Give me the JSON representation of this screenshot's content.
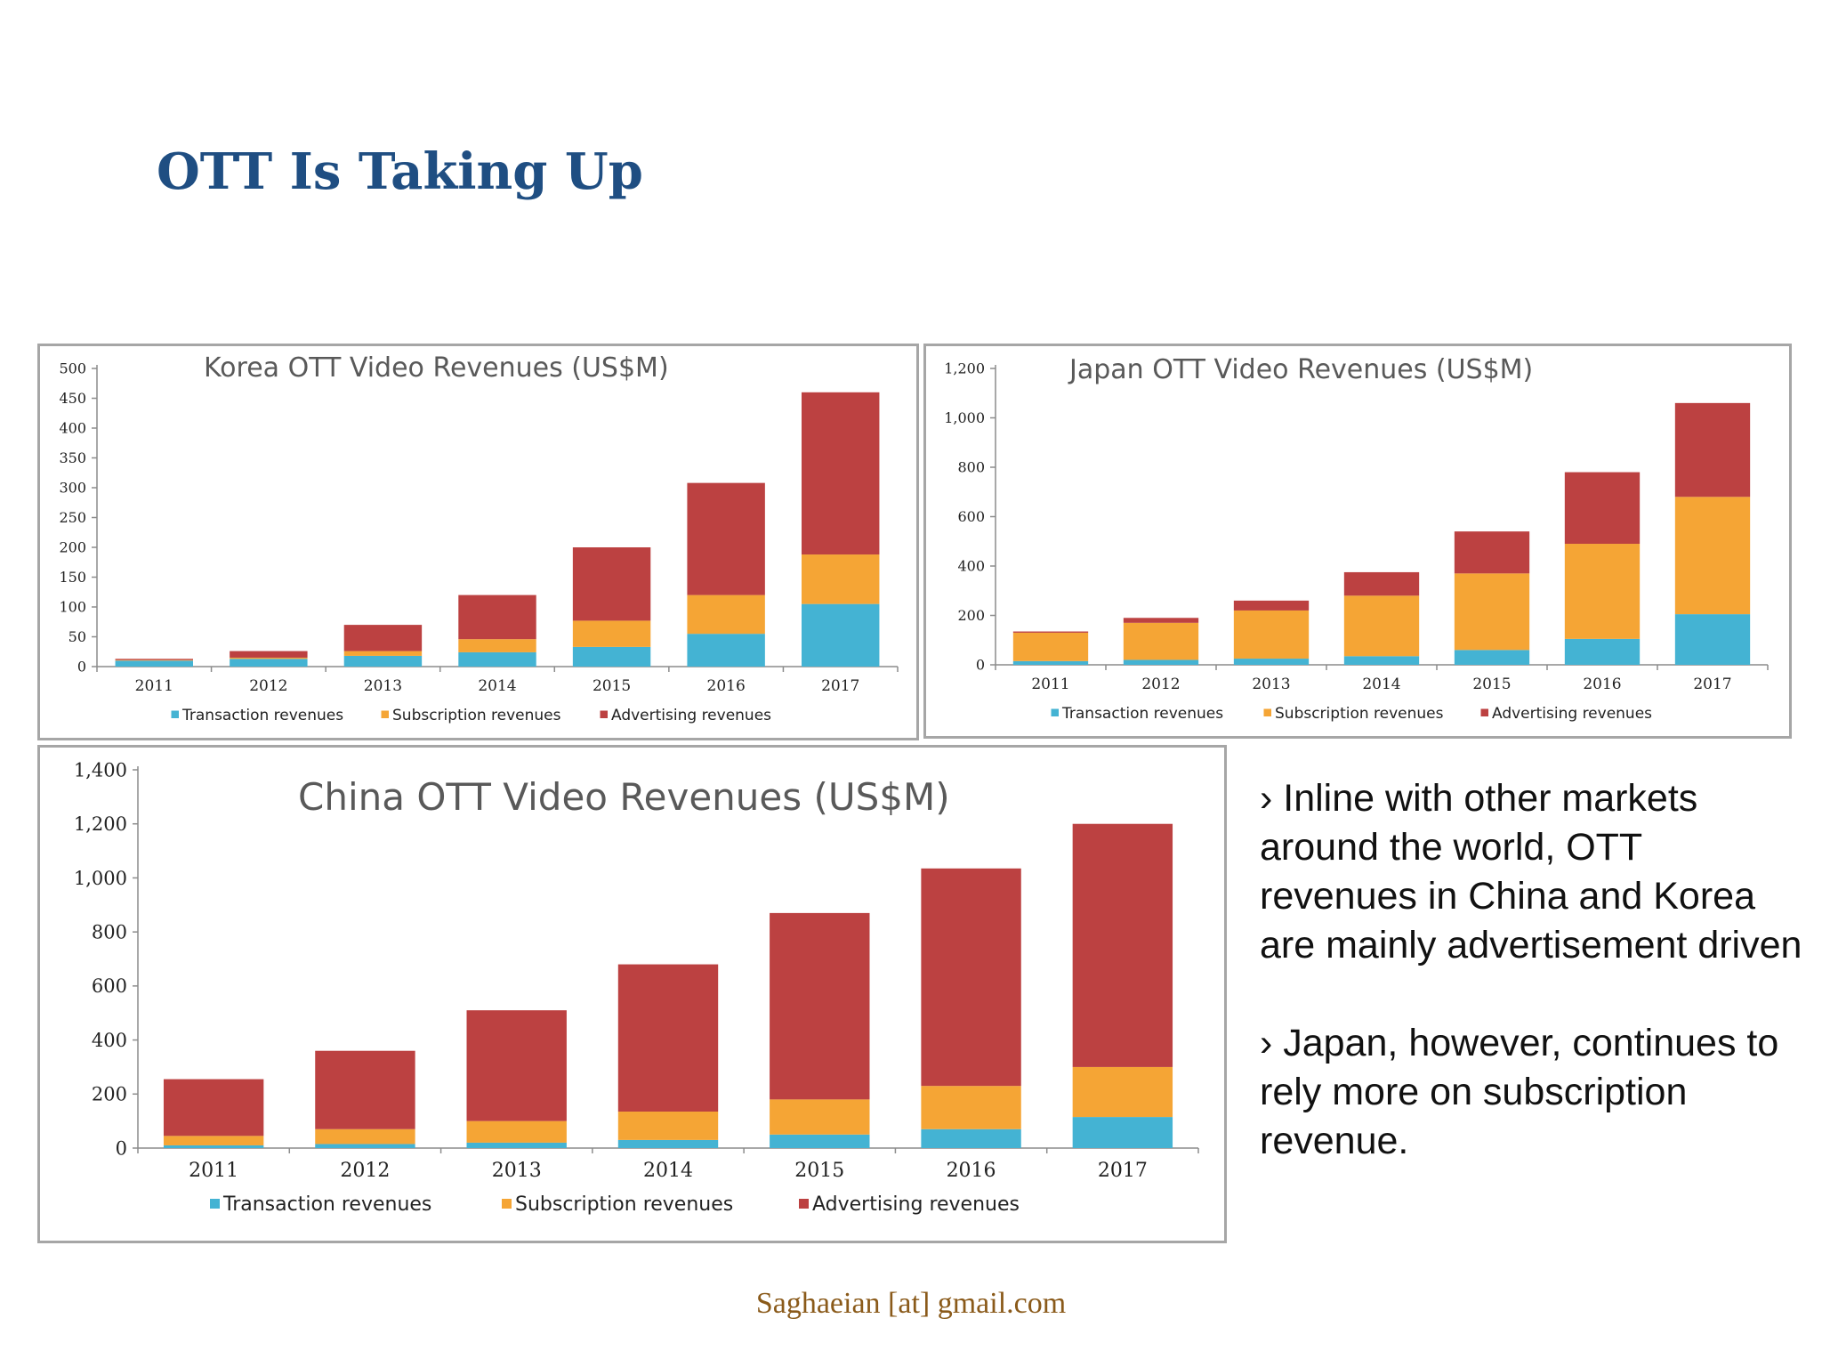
{
  "slide": {
    "title": "OTT Is Taking Up",
    "bullets": [
      "› Inline with other markets around the world, OTT revenues in China and Korea are mainly advertisement driven",
      "› Japan, however, continues to rely more on subscription revenue."
    ],
    "footer": "Saghaeian [at] gmail.com"
  },
  "colors": {
    "transaction": "#44b3d3",
    "subscription": "#f5a535",
    "advertising": "#bc4141",
    "title": "#1f4e82",
    "footer": "#8a5a1a"
  },
  "chart_data": [
    {
      "type": "bar",
      "stacked": true,
      "title": "Korea OTT Video Revenues (US$M)",
      "categories": [
        "2011",
        "2012",
        "2013",
        "2014",
        "2015",
        "2016",
        "2017"
      ],
      "series": [
        {
          "name": "Transaction revenues",
          "color": "#44b3d3",
          "values": [
            10,
            13,
            18,
            24,
            33,
            55,
            105
          ]
        },
        {
          "name": "Subscription revenues",
          "color": "#f5a535",
          "values": [
            1,
            2,
            8,
            22,
            44,
            65,
            83
          ]
        },
        {
          "name": "Advertising revenues",
          "color": "#bc4141",
          "values": [
            2,
            11,
            44,
            74,
            123,
            188,
            272
          ]
        }
      ],
      "ylim": [
        0,
        500
      ],
      "yticks": [
        0,
        50,
        100,
        150,
        200,
        250,
        300,
        350,
        400,
        450,
        500
      ],
      "yticklabels": [
        "0",
        "50",
        "100",
        "150",
        "200",
        "250",
        "300",
        "350",
        "400",
        "450",
        "500"
      ],
      "legend": "bottom"
    },
    {
      "type": "bar",
      "stacked": true,
      "title": "Japan OTT Video Revenues (US$M)",
      "categories": [
        "2011",
        "2012",
        "2013",
        "2014",
        "2015",
        "2016",
        "2017"
      ],
      "series": [
        {
          "name": "Transaction revenues",
          "color": "#44b3d3",
          "values": [
            15,
            20,
            25,
            35,
            60,
            105,
            205
          ]
        },
        {
          "name": "Subscription revenues",
          "color": "#f5a535",
          "values": [
            115,
            150,
            195,
            245,
            310,
            385,
            475
          ]
        },
        {
          "name": "Advertising revenues",
          "color": "#bc4141",
          "values": [
            5,
            20,
            40,
            95,
            170,
            290,
            380
          ]
        }
      ],
      "ylim": [
        0,
        1200
      ],
      "yticks": [
        0,
        200,
        400,
        600,
        800,
        1000,
        1200
      ],
      "yticklabels": [
        "0",
        "200",
        "400",
        "600",
        "800",
        "1,000",
        "1,200"
      ],
      "legend": "bottom"
    },
    {
      "type": "bar",
      "stacked": true,
      "title": "China OTT Video Revenues (US$M)",
      "categories": [
        "2011",
        "2012",
        "2013",
        "2014",
        "2015",
        "2016",
        "2017"
      ],
      "series": [
        {
          "name": "Transaction revenues",
          "color": "#44b3d3",
          "values": [
            10,
            15,
            20,
            30,
            50,
            70,
            115
          ]
        },
        {
          "name": "Subscription revenues",
          "color": "#f5a535",
          "values": [
            35,
            55,
            80,
            105,
            130,
            160,
            185
          ]
        },
        {
          "name": "Advertising revenues",
          "color": "#bc4141",
          "values": [
            210,
            290,
            410,
            545,
            690,
            805,
            900
          ]
        }
      ],
      "ylim": [
        0,
        1400
      ],
      "yticks": [
        0,
        200,
        400,
        600,
        800,
        1000,
        1200,
        1400
      ],
      "yticklabels": [
        "0",
        "200",
        "400",
        "600",
        "800",
        "1,000",
        "1,200",
        "1,400"
      ],
      "legend": "bottom"
    }
  ]
}
